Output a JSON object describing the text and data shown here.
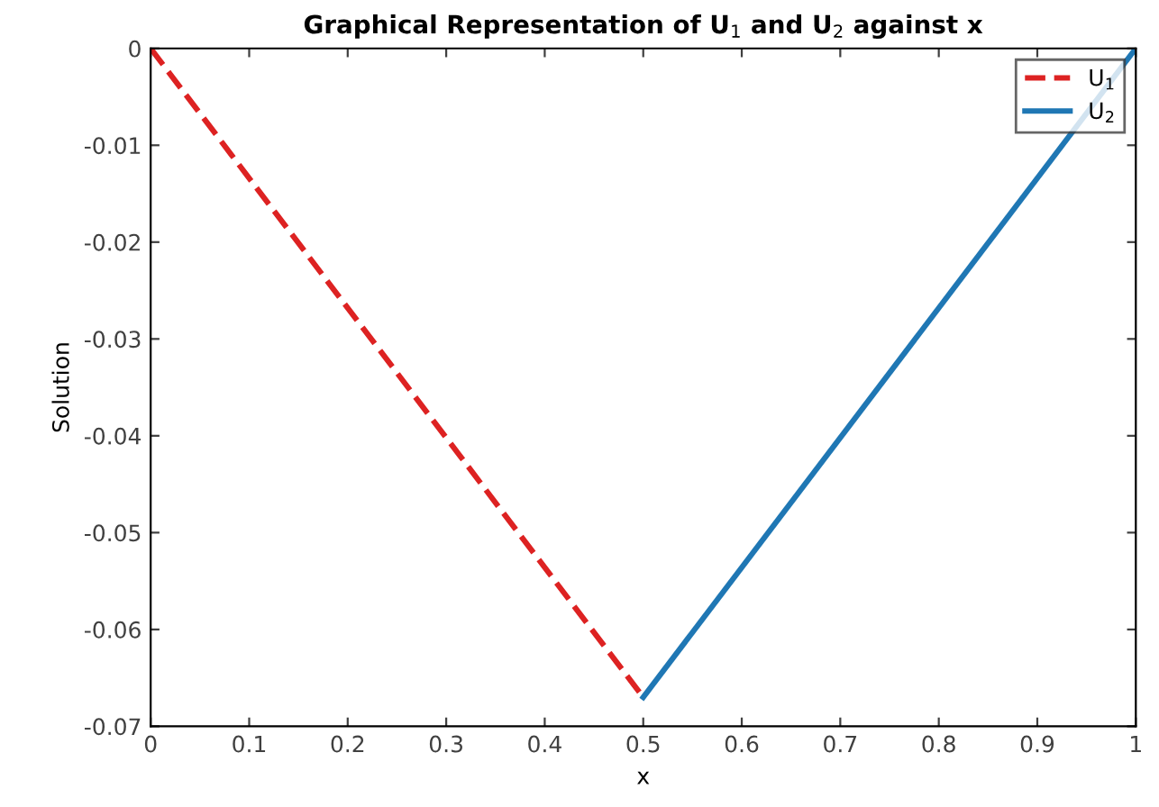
{
  "chart_data": {
    "type": "line",
    "title": "Graphical Representation of U$_{1}$ and U$_{2}$ against x",
    "xlabel": "x",
    "ylabel": "Solution",
    "series": [
      {
        "name": "U$_{1}$",
        "color": "#dd2222",
        "x": [
          0,
          0.5
        ],
        "values": [
          0,
          -0.067
        ],
        "line_style": "dashed"
      },
      {
        "name": "U$_{2}$",
        "color": "#1f77b4",
        "x": [
          0.5,
          1
        ],
        "values": [
          -0.067,
          0
        ],
        "line_style": "solid"
      }
    ],
    "xlim": [
      0,
      1
    ],
    "ylim": [
      -0.07,
      0
    ],
    "xticks": [
      0,
      0.1,
      0.2,
      0.3,
      0.4,
      0.5,
      0.6,
      0.7,
      0.8,
      0.9,
      1
    ],
    "yticks": [
      -0.07,
      -0.06,
      -0.05,
      -0.04,
      -0.03,
      -0.02,
      -0.01,
      0
    ],
    "legend": "top right",
    "grid": false
  }
}
